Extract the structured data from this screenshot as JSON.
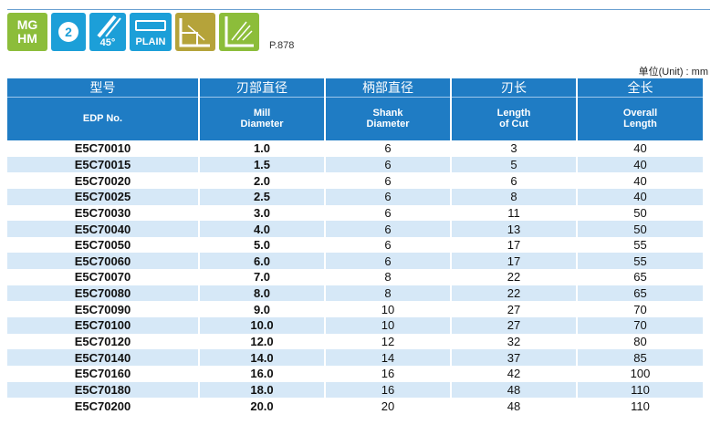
{
  "icons": {
    "material": [
      "MG",
      "HM"
    ],
    "flutes": "2",
    "helix": "45°",
    "shank": "PLAIN",
    "page_ref": "P.878"
  },
  "unit_label": "单位(Unit) : mm",
  "columns": [
    {
      "zh": "型号",
      "en": [
        "EDP No."
      ]
    },
    {
      "zh": "刃部直径",
      "en": [
        "Mill",
        "Diameter"
      ]
    },
    {
      "zh": "柄部直径",
      "en": [
        "Shank",
        "Diameter"
      ]
    },
    {
      "zh": "刃长",
      "en": [
        "Length",
        "of Cut"
      ]
    },
    {
      "zh": "全长",
      "en": [
        "Overall",
        "Length"
      ]
    }
  ],
  "rows": [
    [
      "E5C70010",
      "1.0",
      "6",
      "3",
      "40"
    ],
    [
      "E5C70015",
      "1.5",
      "6",
      "5",
      "40"
    ],
    [
      "E5C70020",
      "2.0",
      "6",
      "6",
      "40"
    ],
    [
      "E5C70025",
      "2.5",
      "6",
      "8",
      "40"
    ],
    [
      "E5C70030",
      "3.0",
      "6",
      "11",
      "50"
    ],
    [
      "E5C70040",
      "4.0",
      "6",
      "13",
      "50"
    ],
    [
      "E5C70050",
      "5.0",
      "6",
      "17",
      "55"
    ],
    [
      "E5C70060",
      "6.0",
      "6",
      "17",
      "55"
    ],
    [
      "E5C70070",
      "7.0",
      "8",
      "22",
      "65"
    ],
    [
      "E5C70080",
      "8.0",
      "8",
      "22",
      "65"
    ],
    [
      "E5C70090",
      "9.0",
      "10",
      "27",
      "70"
    ],
    [
      "E5C70100",
      "10.0",
      "10",
      "27",
      "70"
    ],
    [
      "E5C70120",
      "12.0",
      "12",
      "32",
      "80"
    ],
    [
      "E5C70140",
      "14.0",
      "14",
      "37",
      "85"
    ],
    [
      "E5C70160",
      "16.0",
      "16",
      "42",
      "100"
    ],
    [
      "E5C70180",
      "18.0",
      "16",
      "48",
      "110"
    ],
    [
      "E5C70200",
      "20.0",
      "20",
      "48",
      "110"
    ]
  ]
}
